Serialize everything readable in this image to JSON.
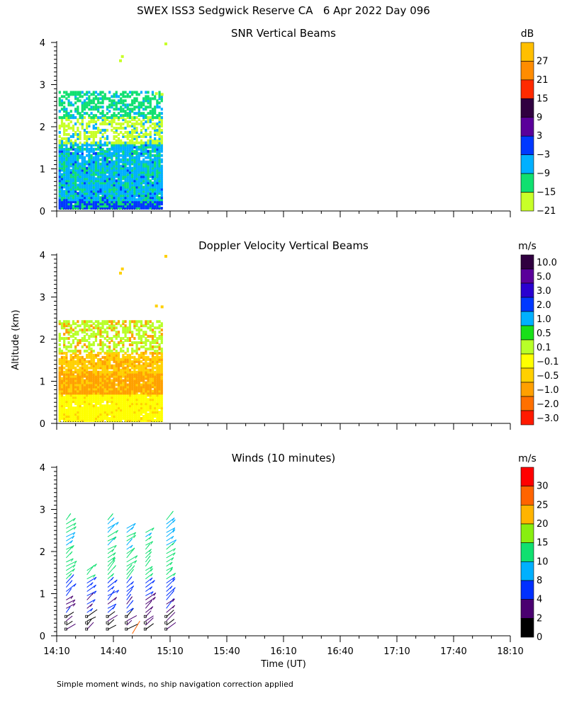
{
  "figure_title": "SWEX ISS3 Sedgwick Reserve CA   6 Apr 2022 Day 096",
  "ylabel": "Altitude (km)",
  "xlabel": "Time (UT)",
  "footnote": "Simple moment winds, no ship navigation correction applied",
  "chart_data": [
    {
      "type": "heatmap",
      "title": "SNR Vertical Beams",
      "ylabel": "Altitude (km)",
      "ylim": [
        0,
        4
      ],
      "yticks": [
        "0",
        "1",
        "2",
        "3",
        "4"
      ],
      "xlim_minutes": [
        0,
        240
      ],
      "data_end_minutes": 56,
      "colorbar": {
        "unit": "dB",
        "labels": [
          "27",
          "21",
          "15",
          "9",
          "3",
          "−3",
          "−9",
          "−15",
          "−21"
        ],
        "colors": [
          "#ffbf00",
          "#ff8c00",
          "#ff2a00",
          "#300040",
          "#5a009a",
          "#0038ff",
          "#00b0ff",
          "#10e070",
          "#c8ff28"
        ]
      },
      "layers_km": [
        {
          "from": 0.05,
          "to": 0.25,
          "color": "#0038ff"
        },
        {
          "from": 0.25,
          "to": 0.7,
          "color": "#00b0ff"
        },
        {
          "from": 0.7,
          "to": 1.6,
          "color": "#00b0ff"
        },
        {
          "from": 1.6,
          "to": 2.2,
          "color": "#c8ff28"
        },
        {
          "from": 2.2,
          "to": 2.8,
          "color": "#10e070"
        }
      ]
    },
    {
      "type": "heatmap",
      "title": "Doppler Velocity Vertical Beams",
      "ylabel": "Altitude (km)",
      "ylim": [
        0,
        4
      ],
      "yticks": [
        "0",
        "1",
        "2",
        "3",
        "4"
      ],
      "xlim_minutes": [
        0,
        240
      ],
      "data_end_minutes": 56,
      "colorbar": {
        "unit": "m/s",
        "labels": [
          "10.0",
          "5.0",
          "3.0",
          "2.0",
          "1.0",
          "0.5",
          "0.1",
          "−0.1",
          "−0.5",
          "−1.0",
          "−2.0",
          "−3.0"
        ],
        "colors": [
          "#300040",
          "#5a009a",
          "#2a00d0",
          "#0038ff",
          "#00b0ff",
          "#18e018",
          "#b8ff28",
          "#ffff00",
          "#ffd000",
          "#ffa000",
          "#ff7000",
          "#ff1a00"
        ]
      },
      "layers_km": [
        {
          "from": 0.05,
          "to": 0.7,
          "color": "#ffff00"
        },
        {
          "from": 0.7,
          "to": 1.2,
          "color": "#ffa000"
        },
        {
          "from": 1.2,
          "to": 1.7,
          "color": "#ffd000"
        },
        {
          "from": 1.7,
          "to": 2.4,
          "color": "#b8ff28"
        }
      ]
    },
    {
      "type": "scatter",
      "title": "Winds (10 minutes)",
      "ylabel": "Altitude (km)",
      "ylim": [
        0,
        4
      ],
      "yticks": [
        "0",
        "1",
        "2",
        "3",
        "4"
      ],
      "xlim_minutes": [
        0,
        240
      ],
      "profile_times_minutes": [
        5,
        16,
        27,
        37,
        47,
        58
      ],
      "colorbar": {
        "unit": "m/s",
        "labels": [
          "30",
          "25",
          "20",
          "15",
          "10",
          "8",
          "4",
          "2",
          "0"
        ],
        "colors": [
          "#ff0000",
          "#ff6400",
          "#ffb400",
          "#88ee10",
          "#10e070",
          "#00b0ff",
          "#0030ff",
          "#4a0070",
          "#000000"
        ]
      }
    }
  ],
  "xaxis": {
    "ticks": [
      "14:10",
      "14:40",
      "15:10",
      "15:40",
      "16:10",
      "16:40",
      "17:10",
      "17:40",
      "18:10"
    ]
  }
}
